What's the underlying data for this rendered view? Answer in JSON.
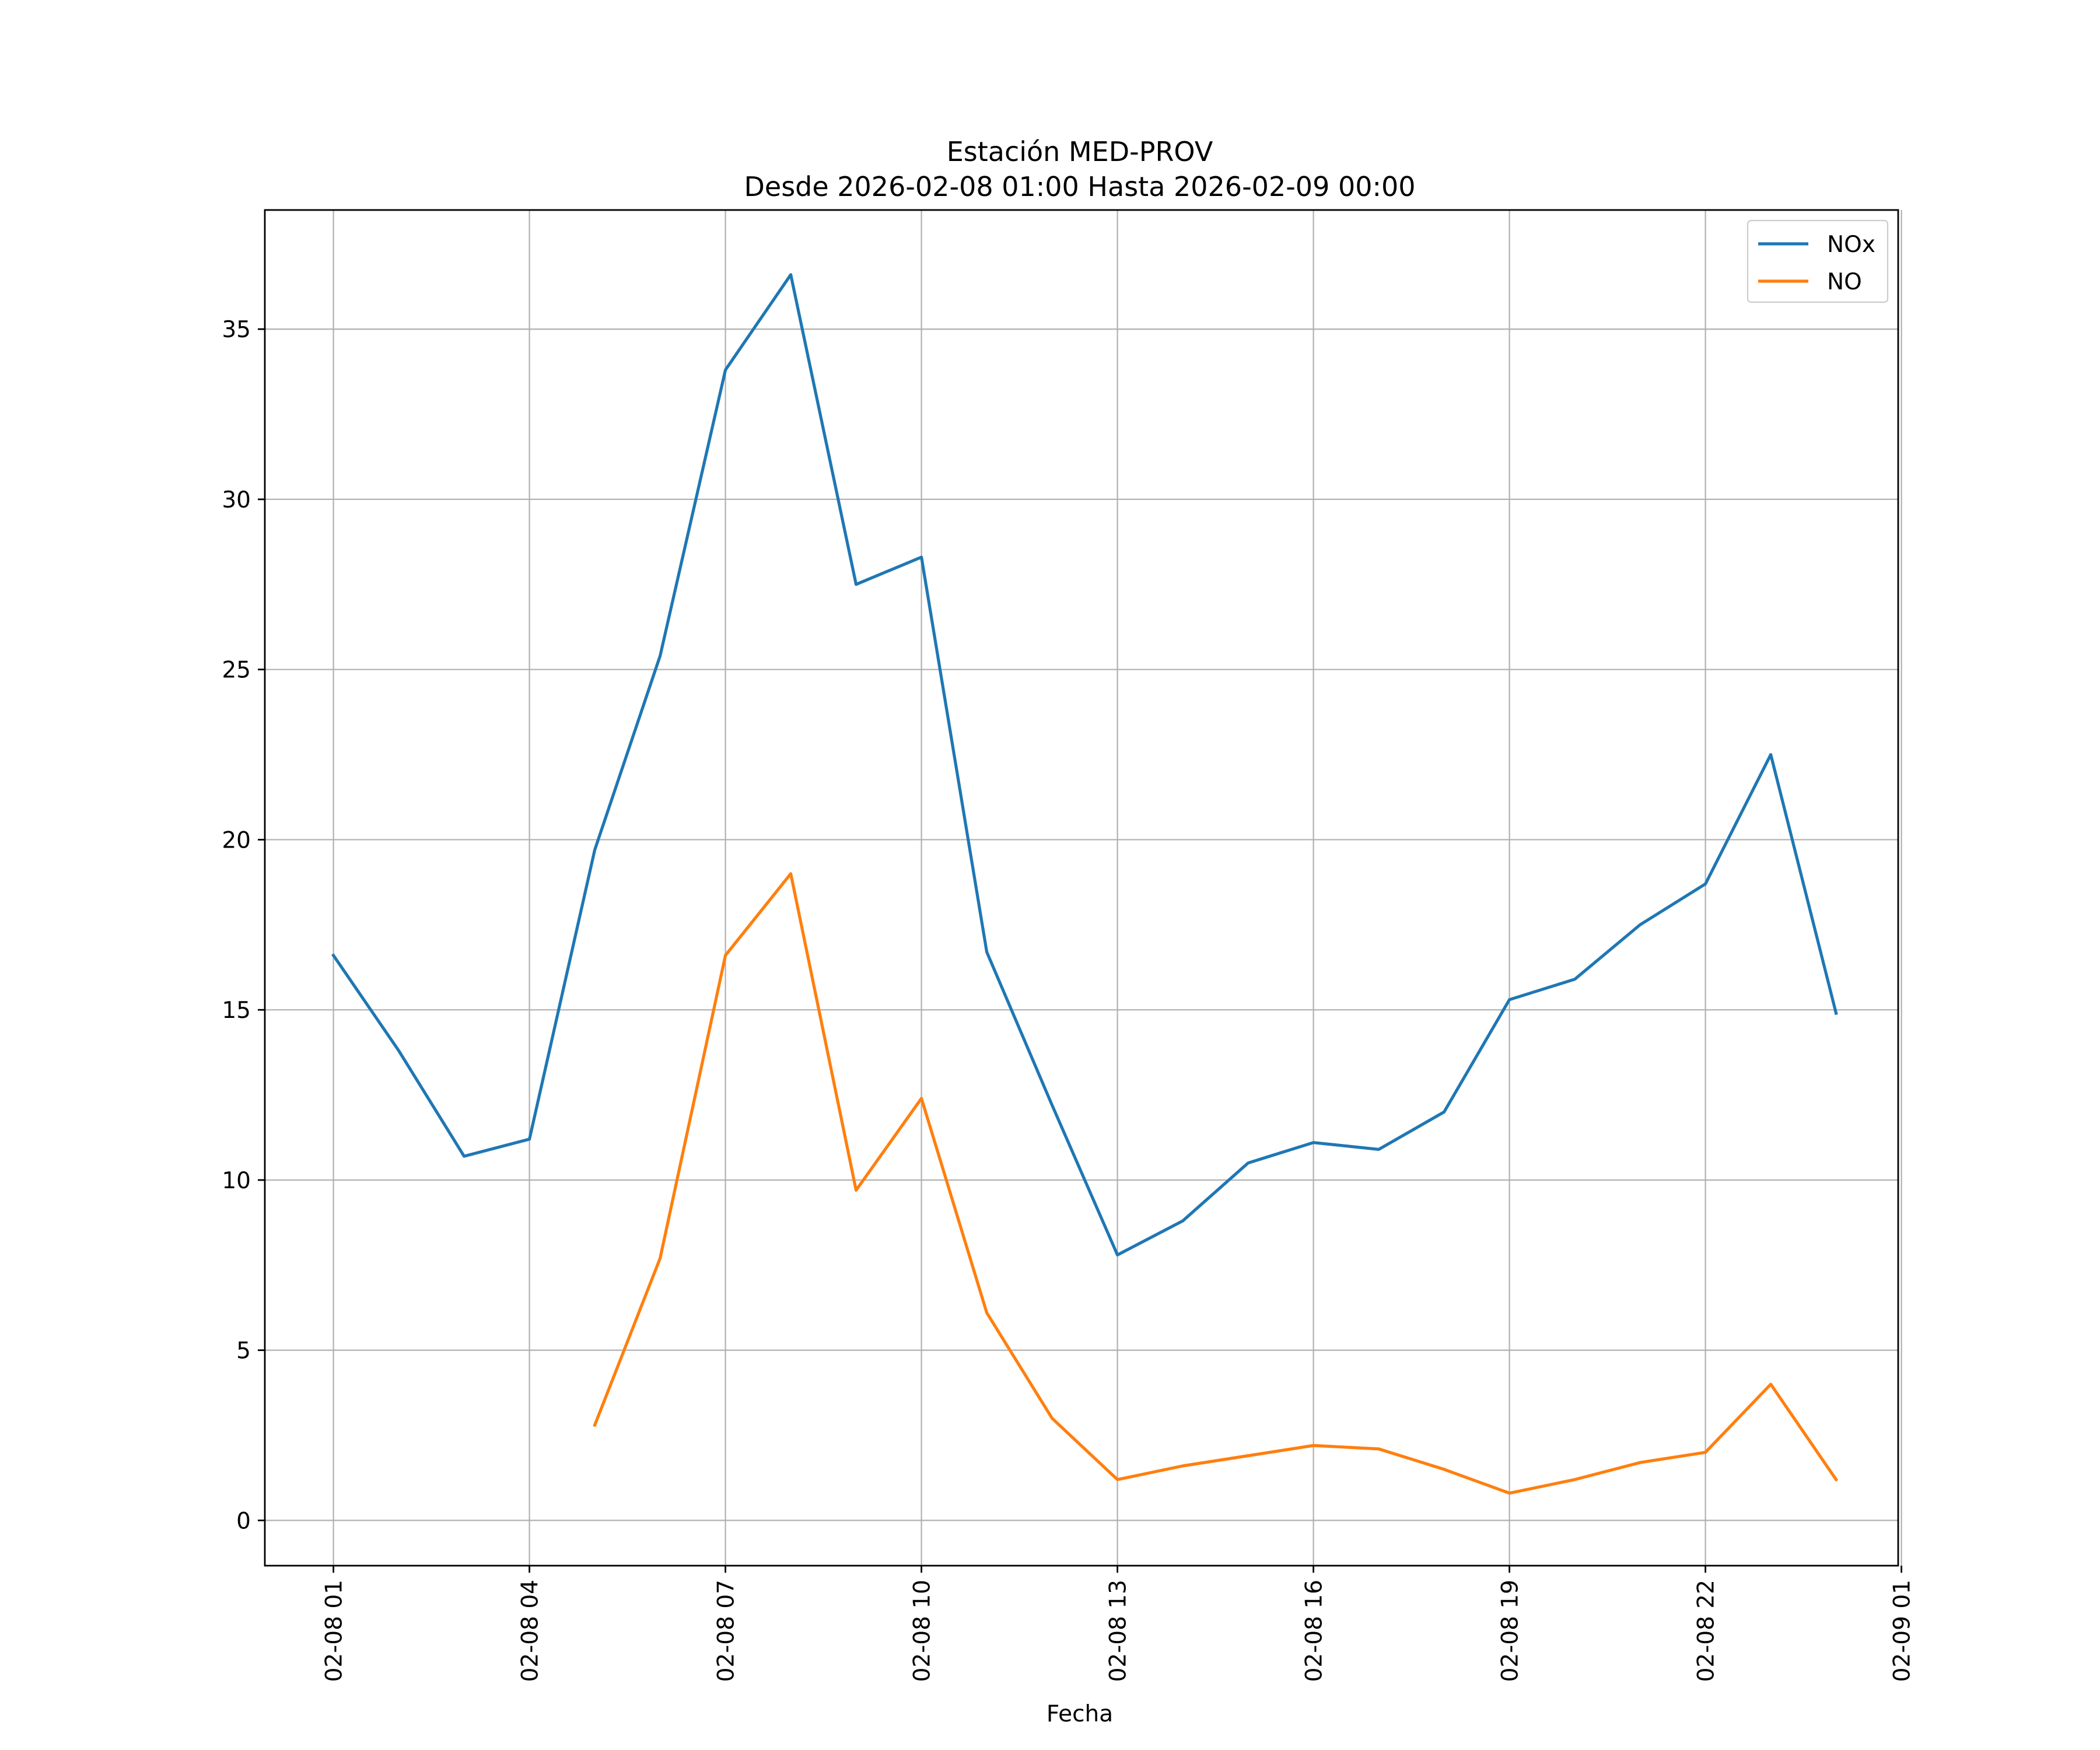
{
  "chart_data": {
    "type": "line",
    "title": [
      "Estación MED-PROV",
      "Desde 2026-02-08 01:00 Hasta 2026-02-09 00:00"
    ],
    "xlabel": "Fecha",
    "ylabel": "",
    "x_hours": [
      1,
      2,
      3,
      4,
      5,
      6,
      7,
      8,
      9,
      10,
      11,
      12,
      13,
      14,
      15,
      16,
      17,
      18,
      19,
      20,
      21,
      22,
      23,
      24
    ],
    "xlim": [
      -0.05,
      24.95
    ],
    "ylim": [
      -1.33,
      38.5
    ],
    "x_ticks": [
      {
        "hour": 1,
        "label": "02-08 01"
      },
      {
        "hour": 4,
        "label": "02-08 04"
      },
      {
        "hour": 7,
        "label": "02-08 07"
      },
      {
        "hour": 10,
        "label": "02-08 10"
      },
      {
        "hour": 13,
        "label": "02-08 13"
      },
      {
        "hour": 16,
        "label": "02-08 16"
      },
      {
        "hour": 19,
        "label": "02-08 19"
      },
      {
        "hour": 22,
        "label": "02-08 22"
      },
      {
        "hour": 25,
        "label": "02-09 01"
      }
    ],
    "y_ticks": [
      {
        "value": 0,
        "label": "0"
      },
      {
        "value": 5,
        "label": "5"
      },
      {
        "value": 10,
        "label": "10"
      },
      {
        "value": 15,
        "label": "15"
      },
      {
        "value": 20,
        "label": "20"
      },
      {
        "value": 25,
        "label": "25"
      },
      {
        "value": 30,
        "label": "30"
      },
      {
        "value": 35,
        "label": "35"
      }
    ],
    "grid": true,
    "legend_position": "top-right",
    "series": [
      {
        "name": "NOx",
        "color": "#1f77b4",
        "values": [
          16.6,
          13.8,
          10.7,
          11.2,
          19.7,
          25.4,
          33.8,
          36.6,
          27.5,
          28.3,
          16.7,
          12.2,
          7.8,
          8.8,
          10.5,
          11.1,
          10.9,
          12.0,
          15.3,
          15.9,
          17.5,
          18.7,
          22.5,
          14.9
        ]
      },
      {
        "name": "NO",
        "color": "#ff7f0e",
        "values": [
          null,
          null,
          null,
          null,
          2.8,
          7.7,
          16.6,
          19.0,
          9.7,
          12.4,
          6.1,
          3.0,
          1.2,
          1.6,
          1.9,
          2.2,
          2.1,
          1.5,
          0.8,
          1.2,
          1.7,
          2.0,
          4.0,
          1.2
        ]
      }
    ]
  }
}
